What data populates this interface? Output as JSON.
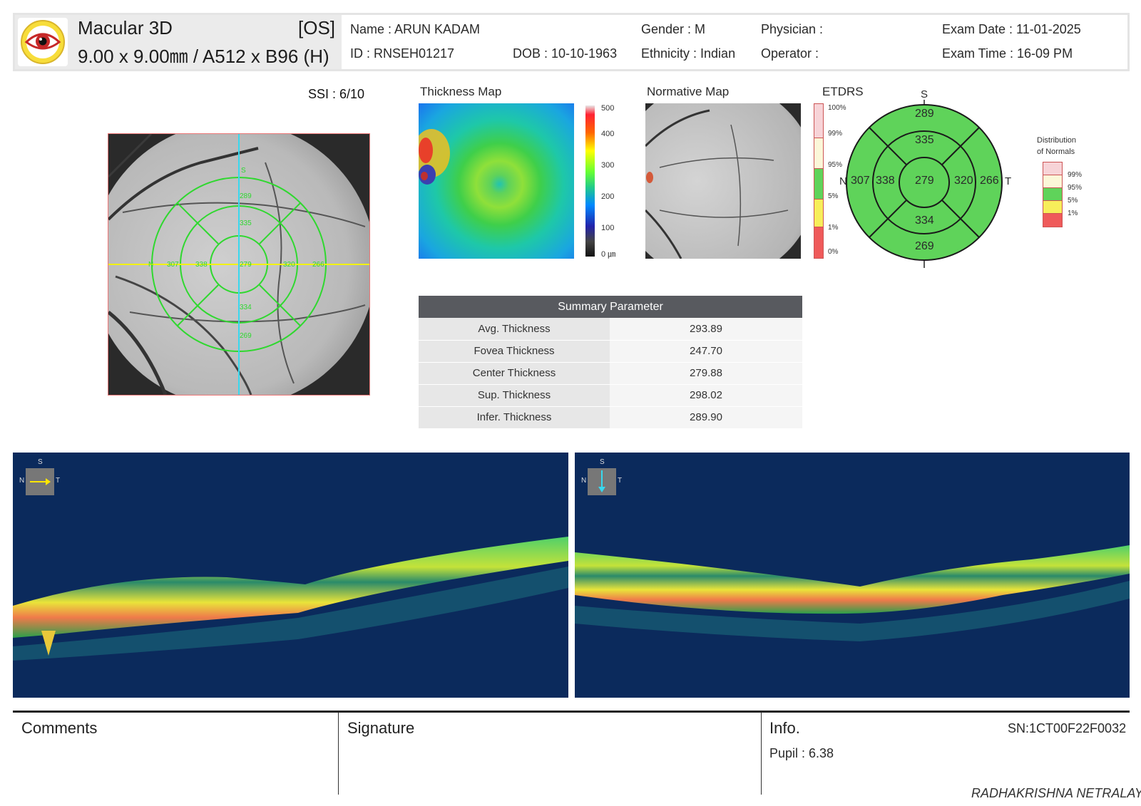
{
  "header": {
    "exam_type": "Macular 3D",
    "eye": "[OS]",
    "scan_spec": "9.00 x 9.00㎜ / A512 x B96 (H)",
    "name": "Name : ARUN KADAM",
    "id": "ID : RNSEH01217",
    "dob": "DOB : 10-10-1963",
    "gender": "Gender : M",
    "ethnicity": "Ethnicity : Indian",
    "physician": "Physician :",
    "operator": "Operator :",
    "exam_date": "Exam Date : 11-01-2025",
    "exam_time": "Exam Time : 16-09 PM"
  },
  "fundus": {
    "ssi": "SSI : 6/10",
    "grid_values": {
      "s_outer": "289",
      "s_inner": "335",
      "center": "279",
      "n_outer": "307",
      "n_inner": "338",
      "t_inner": "320",
      "t_outer": "266",
      "i_inner": "334",
      "i_outer": "269"
    },
    "n_label": "N",
    "s_label": "S"
  },
  "thickness_map": {
    "title": "Thickness Map",
    "scale": [
      "500",
      "400",
      "300",
      "200",
      "100",
      "0 ㎛"
    ]
  },
  "normative_map": {
    "title": "Normative Map"
  },
  "etdrs": {
    "title": "ETDRS",
    "scale": [
      "100%",
      "99%",
      "95%",
      "5%",
      "1%",
      "0%"
    ],
    "orientation": {
      "s": "S",
      "n": "N",
      "t": "T"
    },
    "values": {
      "s_outer": "289",
      "s_inner": "335",
      "center": "279",
      "n_outer": "307",
      "n_inner": "338",
      "t_inner": "320",
      "t_outer": "266",
      "i_inner": "334",
      "i_outer": "269"
    },
    "color": "#5fd35a"
  },
  "distribution": {
    "title_line1": "Distribution",
    "title_line2": "of Normals",
    "items": [
      {
        "label": "99%",
        "color": "#f7d3d7"
      },
      {
        "label": "95%",
        "color": "#fbf7d8"
      },
      {
        "label": "5%",
        "color": "#5fd35a"
      },
      {
        "label": "1%",
        "color": "#f7ee5a"
      },
      {
        "label": "",
        "color": "#ef5a5a"
      }
    ]
  },
  "summary": {
    "title": "Summary Parameter",
    "rows": [
      {
        "label": "Avg. Thickness",
        "value": "293.89"
      },
      {
        "label": "Fovea Thickness",
        "value": "247.70"
      },
      {
        "label": "Center Thickness",
        "value": "279.88"
      },
      {
        "label": "Sup. Thickness",
        "value": "298.02"
      },
      {
        "label": "Infer. Thickness",
        "value": "289.90"
      }
    ]
  },
  "bscan": {
    "orient": {
      "s": "S",
      "n": "N",
      "t": "T"
    }
  },
  "footer": {
    "comments": "Comments",
    "signature": "Signature",
    "info": "Info.",
    "sn": "SN:1CT00F22F0032",
    "pupil": "Pupil : 6.38",
    "clinic": "RADHAKRISHNA NETRALAY"
  }
}
